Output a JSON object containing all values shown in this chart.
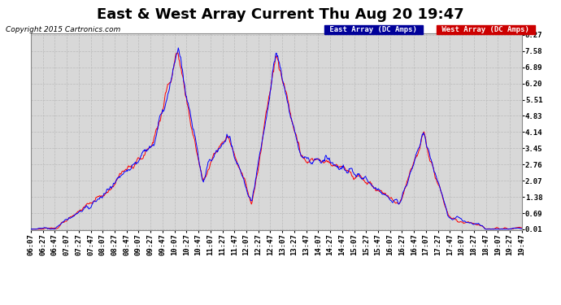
{
  "title": "East & West Array Current Thu Aug 20 19:47",
  "copyright": "Copyright 2015 Cartronics.com",
  "legend_east": "East Array (DC Amps)",
  "legend_west": "West Array (DC Amps)",
  "east_color": "#0000ff",
  "west_color": "#ff0000",
  "east_legend_bg": "#000099",
  "west_legend_bg": "#cc0000",
  "yticks": [
    0.01,
    0.69,
    1.38,
    2.07,
    2.76,
    3.45,
    4.14,
    4.83,
    5.51,
    6.2,
    6.89,
    7.58,
    8.27
  ],
  "ymin": 0.01,
  "ymax": 8.27,
  "grid_color": "#bbbbbb",
  "bg_color": "#ffffff",
  "plot_bg": "#d8d8d8",
  "title_fontsize": 13,
  "tick_fontsize": 6.5,
  "copyright_fontsize": 6.5
}
